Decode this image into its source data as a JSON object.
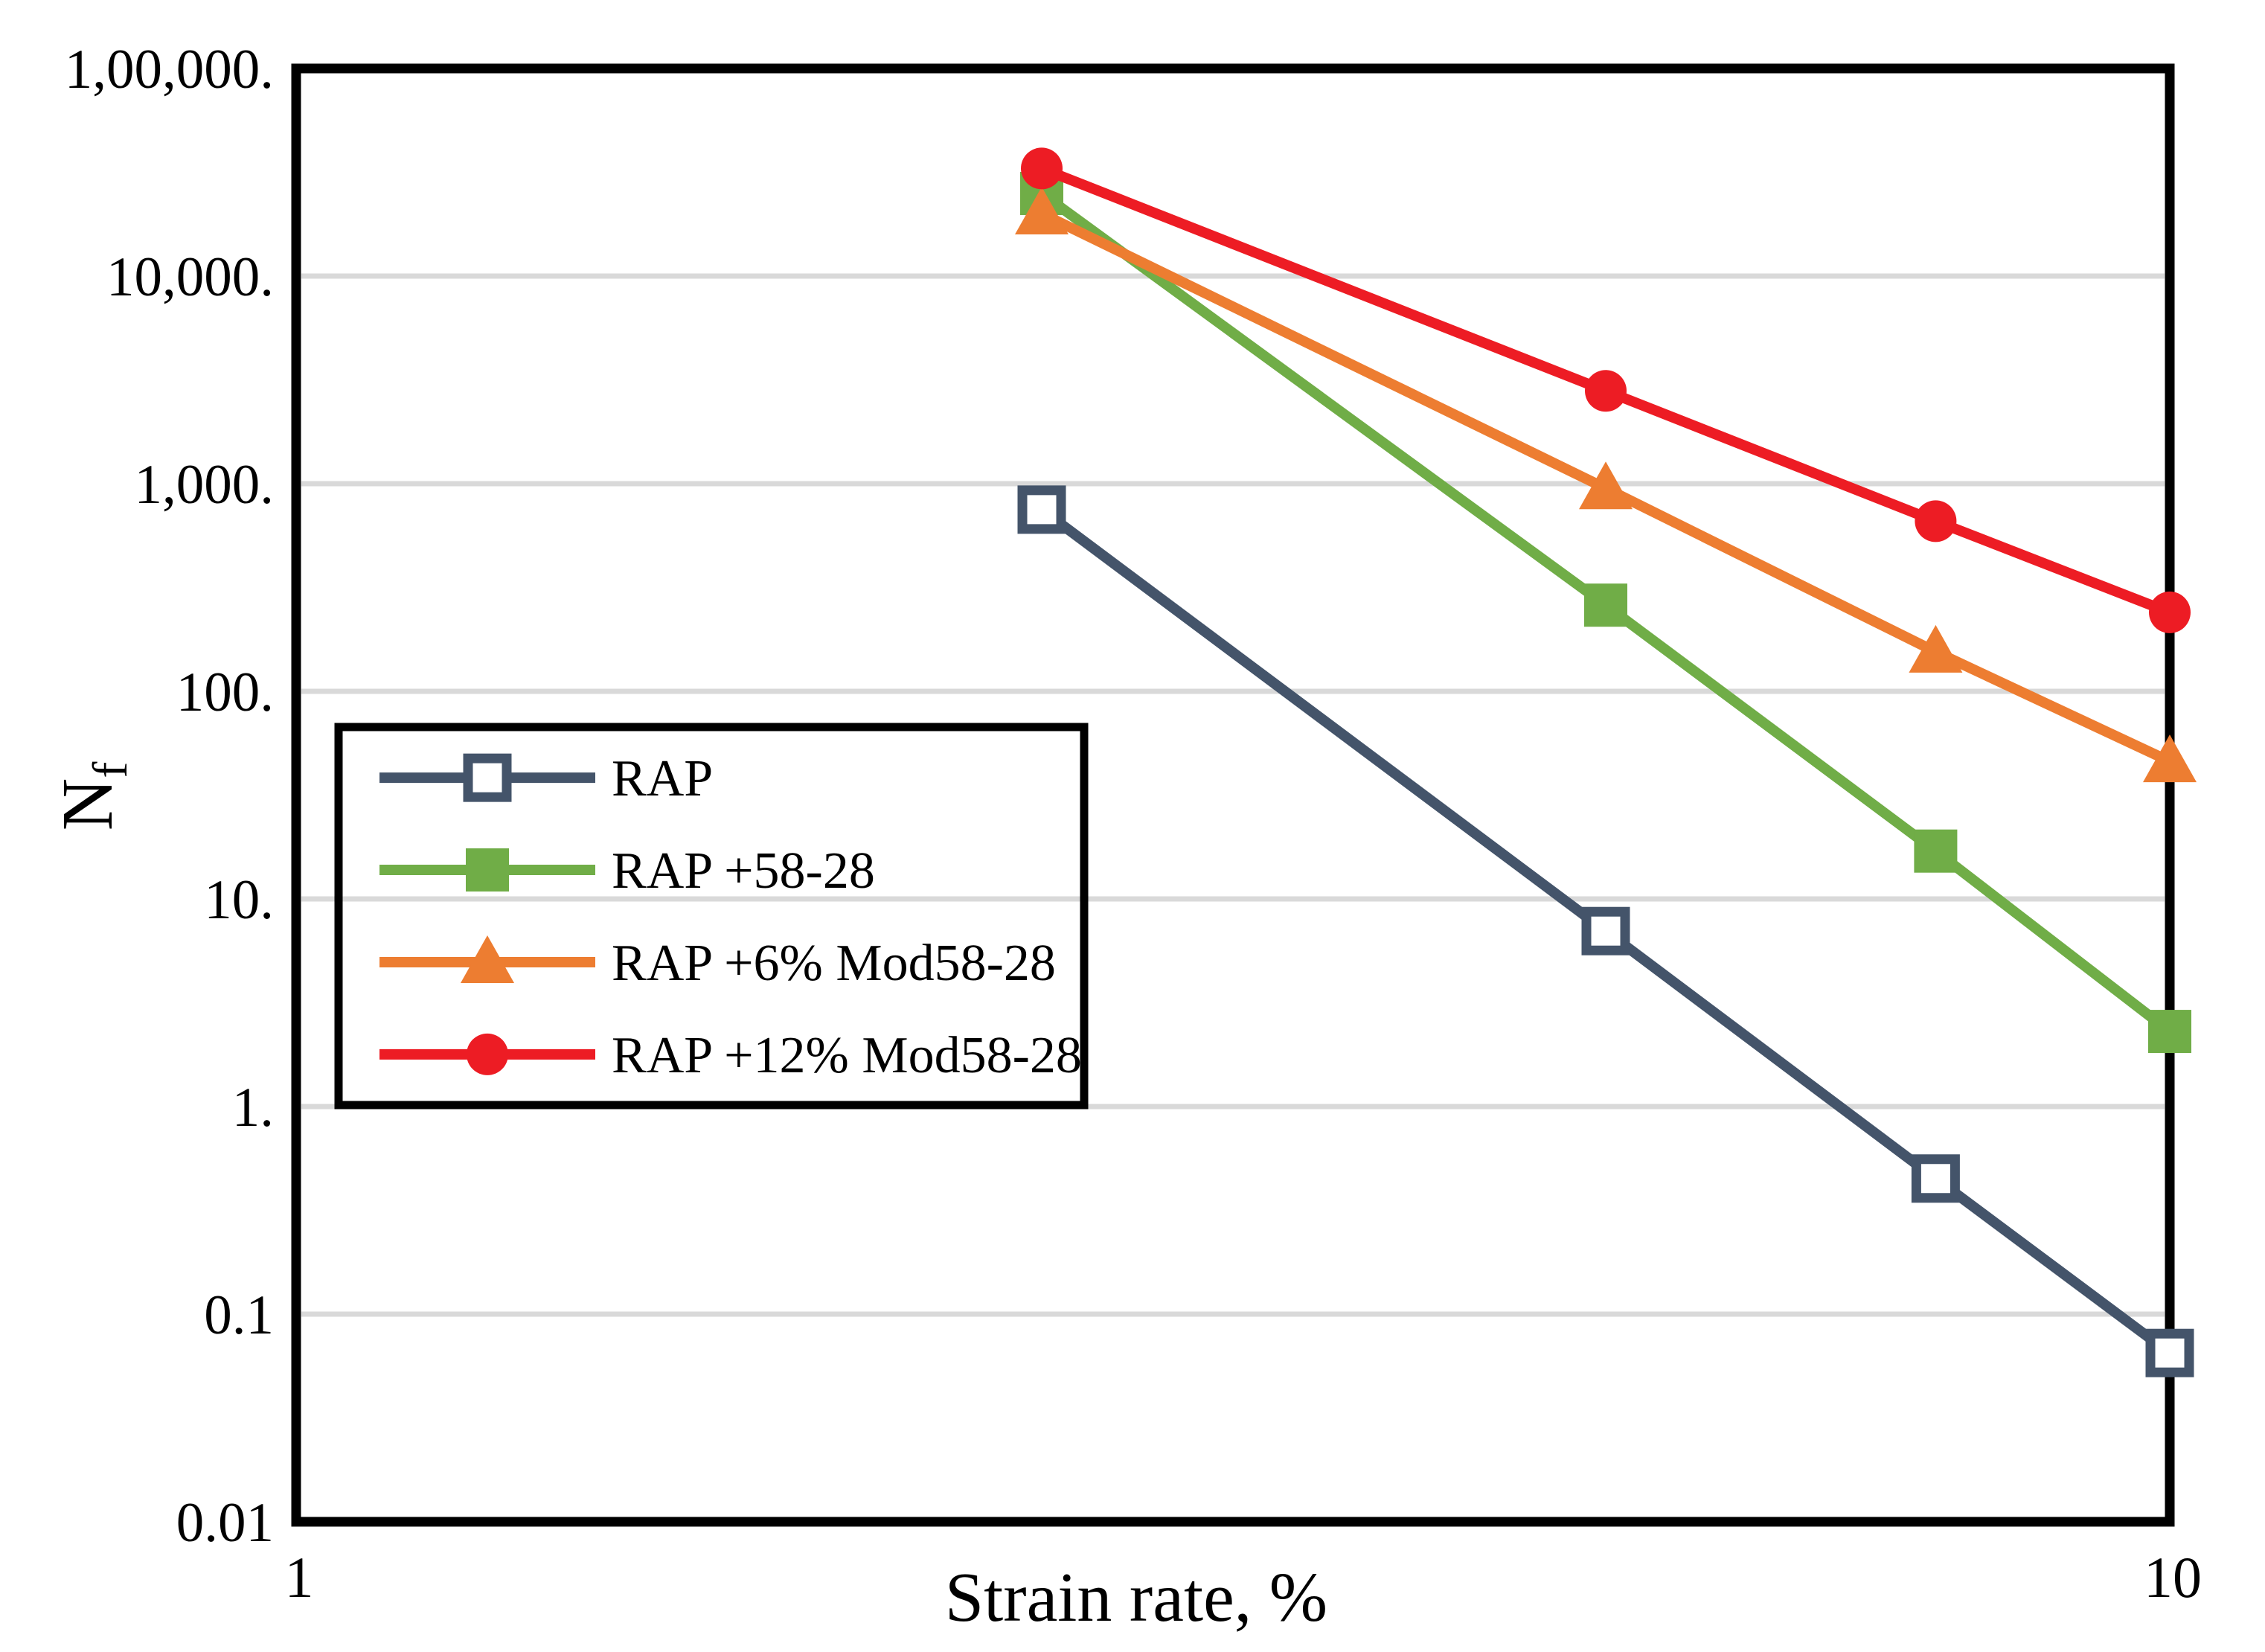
{
  "figure": {
    "background": "#FFFFFF",
    "description": "Log-log line chart of fatigue life Nf versus strain rate for RAP mixes"
  },
  "axes": {
    "x_title": "Strain rate, %",
    "y_title_main": "N",
    "y_title_sub": "f"
  },
  "chart_data": {
    "type": "line",
    "x_scale": "log",
    "y_scale": "log",
    "xlim": [
      1,
      10
    ],
    "ylim": [
      0.01,
      100000
    ],
    "grid": {
      "horizontal": true,
      "color": "#D9D9D9"
    },
    "legend_position": "middle-left",
    "x_ticks": [
      {
        "value": 1,
        "label": "1"
      },
      {
        "value": 10,
        "label": "10"
      }
    ],
    "y_ticks": [
      {
        "value": 100000,
        "label": "1,00,000."
      },
      {
        "value": 10000,
        "label": "10,000."
      },
      {
        "value": 1000,
        "label": "1,000."
      },
      {
        "value": 100,
        "label": "100."
      },
      {
        "value": 10,
        "label": "10."
      },
      {
        "value": 1,
        "label": "1."
      },
      {
        "value": 0.1,
        "label": "0.1"
      },
      {
        "value": 0.01,
        "label": "0.01"
      }
    ],
    "x": [
      2.5,
      5,
      7.5,
      10
    ],
    "series": [
      {
        "name": "RAP",
        "color": "#44546A",
        "marker": "open-square",
        "values": [
          750,
          7,
          0.45,
          0.065
        ]
      },
      {
        "name": "RAP +58-28",
        "color": "#70AD47",
        "marker": "square",
        "values": [
          25000,
          260,
          17,
          2.3
        ]
      },
      {
        "name": "RAP +6% Mod58-28",
        "color": "#ED7D31",
        "marker": "triangle",
        "values": [
          20000,
          950,
          155,
          46
        ]
      },
      {
        "name": "RAP +12% Mod58-28",
        "color": "#ED1C24",
        "marker": "circle",
        "values": [
          33000,
          2800,
          660,
          240
        ]
      }
    ]
  },
  "colors": {
    "axis_border": "#000000",
    "grid": "#D9D9D9",
    "text": "#000000",
    "legend_border": "#000000"
  }
}
